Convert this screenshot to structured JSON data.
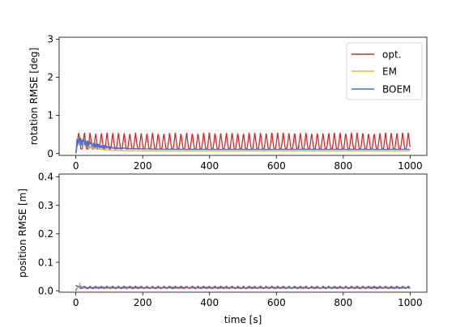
{
  "chart_data": [
    {
      "type": "line",
      "ylabel": "rotation RMSE [deg]",
      "xlabel": "",
      "xlim": [
        -50,
        1050
      ],
      "ylim": [
        -0.05,
        3.05
      ],
      "xticks": [
        0,
        200,
        400,
        600,
        800,
        1000
      ],
      "yticks": [
        0,
        1,
        2,
        3
      ],
      "legend": {
        "position": "top-right",
        "entries": [
          "opt.",
          "EM",
          "BOEM"
        ]
      },
      "series": [
        {
          "name": "opt.",
          "color": "#d62728",
          "pattern": "periodic spikes",
          "period_s": 17,
          "baseline": 0.12,
          "peak": 0.58,
          "range": [
            0,
            1000
          ]
        },
        {
          "name": "EM",
          "color": "#d4b84a",
          "pattern": "decaying then flat",
          "initial_peak": 0.55,
          "steady": 0.07,
          "range": [
            0,
            1000
          ]
        },
        {
          "name": "BOEM",
          "color": "#4a6fd0",
          "pattern": "decaying noisy then flat",
          "initial_peak": 0.52,
          "steady": 0.11,
          "range": [
            0,
            1000
          ]
        }
      ]
    },
    {
      "type": "line",
      "ylabel": "position RMSE [m]",
      "xlabel": "time [s]",
      "xlim": [
        -50,
        1050
      ],
      "ylim": [
        -0.005,
        0.41
      ],
      "xticks": [
        0,
        200,
        400,
        600,
        800,
        1000
      ],
      "yticks": [
        0.0,
        0.1,
        0.2,
        0.3,
        0.4
      ],
      "series": [
        {
          "name": "opt.",
          "color": "#d62728",
          "pattern": "small periodic spikes",
          "period_s": 17,
          "baseline": 0.008,
          "peak": 0.017,
          "range": [
            0,
            1000
          ]
        },
        {
          "name": "EM",
          "color": "#d4b84a",
          "pattern": "initial spike then flat",
          "initial_peak": 0.03,
          "steady": 0.01,
          "range": [
            0,
            1000
          ]
        },
        {
          "name": "BOEM",
          "color": "#4a6fd0",
          "pattern": "noisy flat",
          "initial_peak": 0.02,
          "steady": 0.011,
          "range": [
            0,
            1000
          ]
        }
      ]
    }
  ],
  "tick_labels": {
    "x": [
      "0",
      "200",
      "400",
      "600",
      "800",
      "1000"
    ],
    "y_top": [
      "0",
      "1",
      "2",
      "3"
    ],
    "y_bottom": [
      "0.0",
      "0.1",
      "0.2",
      "0.3",
      "0.4"
    ]
  }
}
